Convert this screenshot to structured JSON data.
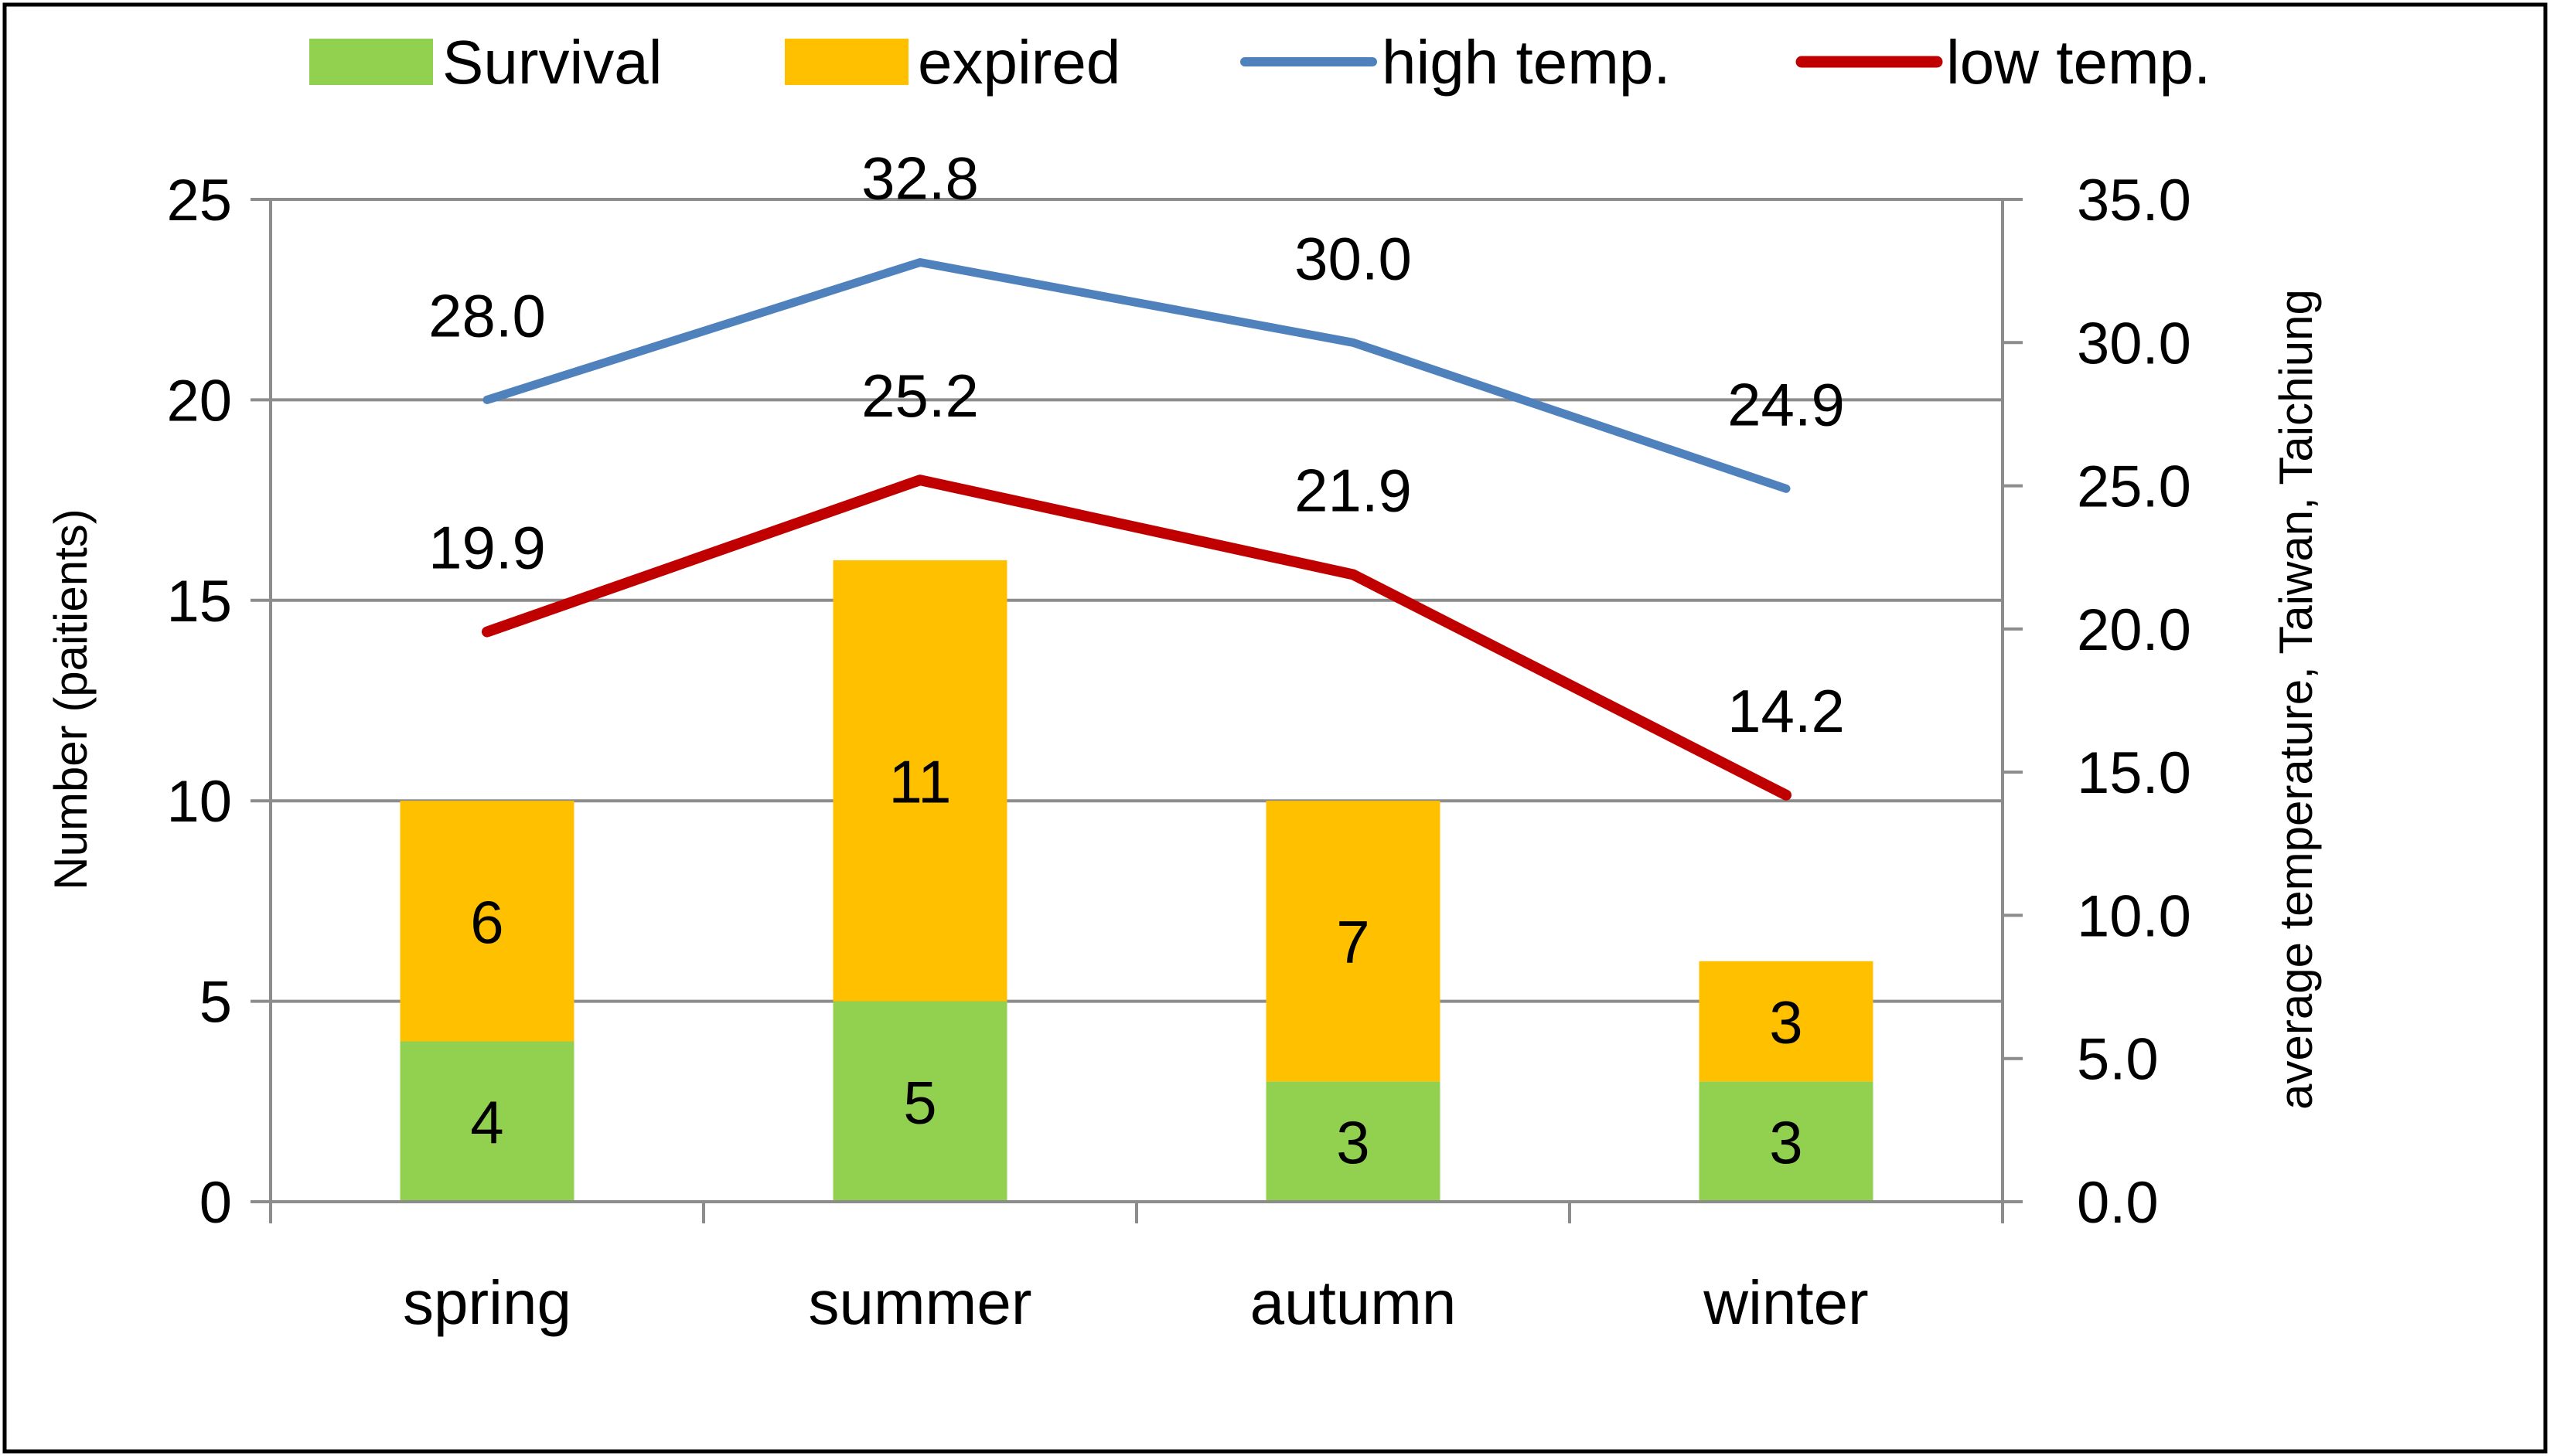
{
  "chart_data": {
    "type": "bar",
    "stacked": true,
    "categories": [
      "spring",
      "summer",
      "autumn",
      "winter"
    ],
    "series": [
      {
        "name": "Survival",
        "kind": "bar",
        "axis": "left",
        "color": "#92d050",
        "values": [
          4,
          5,
          3,
          3
        ],
        "labels": [
          "4",
          "5",
          "3",
          "3"
        ]
      },
      {
        "name": "expired",
        "kind": "bar",
        "axis": "left",
        "color": "#ffc000",
        "values": [
          6,
          11,
          7,
          3
        ],
        "labels": [
          "6",
          "11",
          "7",
          "3"
        ]
      },
      {
        "name": "high temp.",
        "kind": "line",
        "axis": "right",
        "color": "#4f81bd",
        "values": [
          28.0,
          32.8,
          30.0,
          24.9
        ],
        "labels": [
          "28.0",
          "32.8",
          "30.0",
          "24.9"
        ]
      },
      {
        "name": "low temp.",
        "kind": "line",
        "axis": "right",
        "color": "#c00000",
        "values": [
          19.9,
          25.2,
          21.9,
          14.2
        ],
        "labels": [
          "19.9",
          "25.2",
          "21.9",
          "14.2"
        ]
      }
    ],
    "ylabel": "Number (paitients)",
    "y2label": "average temperature, Taiwan, Taichiung",
    "ylim": [
      0,
      25
    ],
    "y2lim": [
      0,
      35
    ],
    "yticks": [
      "0",
      "5",
      "10",
      "15",
      "20",
      "25"
    ],
    "y2ticks": [
      "0.0",
      "5.0",
      "10.0",
      "15.0",
      "20.0",
      "25.0",
      "30.0",
      "35.0"
    ],
    "grid": true,
    "legend": "top"
  }
}
